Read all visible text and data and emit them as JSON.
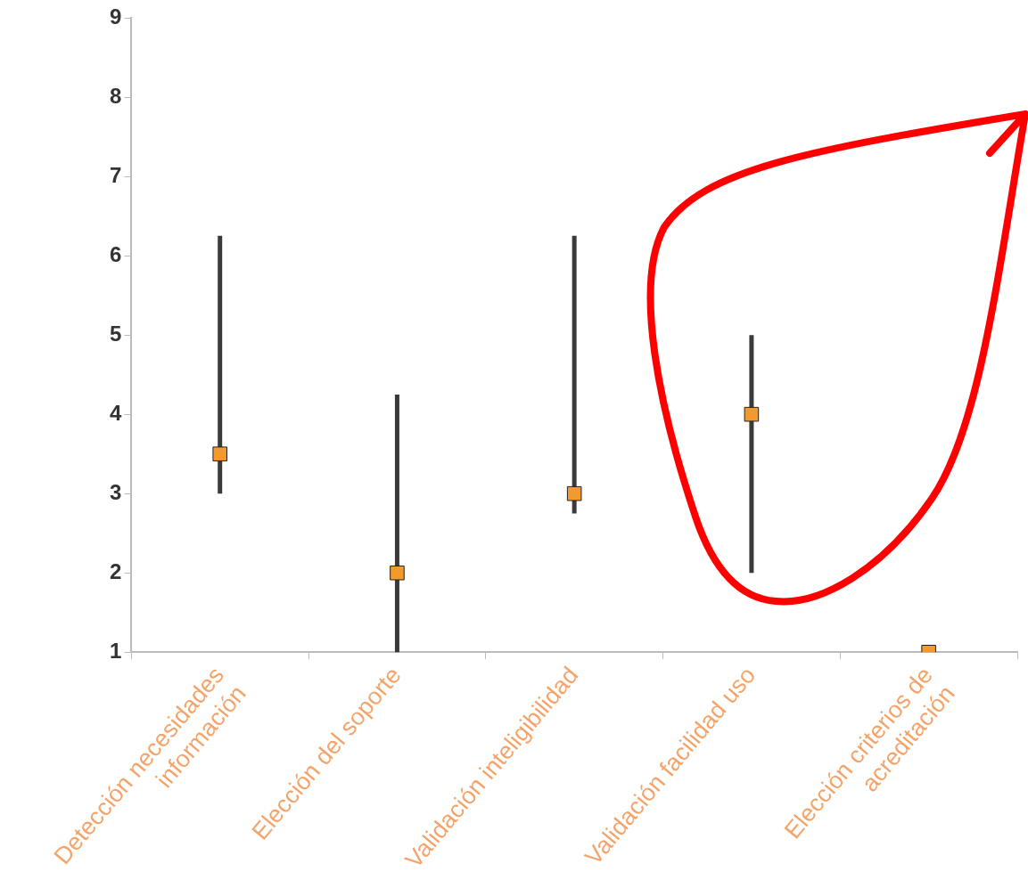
{
  "chart_data": {
    "type": "scatter",
    "categories": [
      "Detección necesidades información",
      "Elección del soporte",
      "Validación inteligibilidad",
      "Validación facilidad uso",
      "Elección criterios de acreditación"
    ],
    "values": [
      3.5,
      2,
      3,
      4,
      1
    ],
    "errors": [
      [
        3,
        6.25
      ],
      [
        1,
        4.25
      ],
      [
        2.75,
        6.25
      ],
      [
        2,
        5
      ],
      null
    ],
    "color": "#f39a2e",
    "marker": "square",
    "ylim": [
      1,
      9
    ],
    "yticks": [
      1,
      2,
      3,
      4,
      5,
      6,
      7,
      8,
      9
    ]
  }
}
